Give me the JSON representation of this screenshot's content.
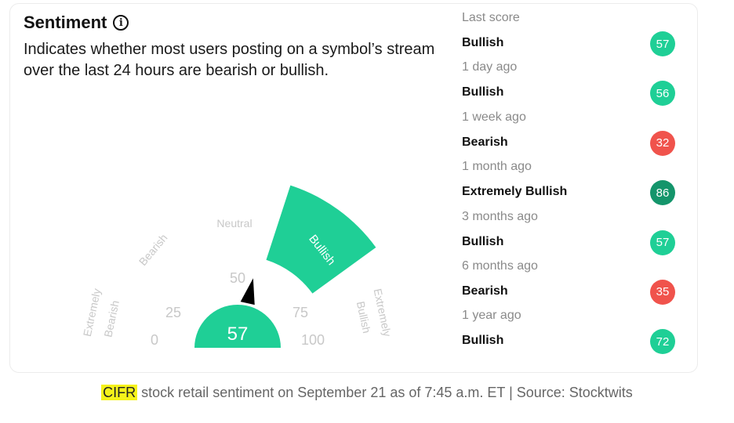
{
  "header": {
    "title": "Sentiment",
    "info_icon": "info-circle-icon",
    "description": "Indicates whether most users posting on a symbol’s stream over the last 24 hours are bearish or bullish."
  },
  "gauge": {
    "score": "57",
    "active_segment_label": "Bullish",
    "ticks": [
      "0",
      "25",
      "50",
      "75",
      "100"
    ],
    "segment_labels": {
      "extremely_bearish_1": "Extremely",
      "extremely_bearish_2": "Bearish",
      "bearish": "Bearish",
      "neutral": "Neutral",
      "extremely_bullish_1": "Extremely",
      "extremely_bullish_2": "Bullish"
    },
    "colors": {
      "active": "#1fcf96",
      "muted_text": "#c8c8c8",
      "pointer": "#000000"
    }
  },
  "history": [
    {
      "when": "Last score",
      "label": "Bullish",
      "score": "57",
      "color": "#1fcf96"
    },
    {
      "when": "1 day ago",
      "label": "Bullish",
      "score": "56",
      "color": "#1fcf96"
    },
    {
      "when": "1 week ago",
      "label": "Bearish",
      "score": "32",
      "color": "#f0534c"
    },
    {
      "when": "1 month ago",
      "label": "Extremely Bullish",
      "score": "86",
      "color": "#14956b"
    },
    {
      "when": "3 months ago",
      "label": "Bullish",
      "score": "57",
      "color": "#1fcf96"
    },
    {
      "when": "6 months ago",
      "label": "Bearish",
      "score": "35",
      "color": "#f0534c"
    },
    {
      "when": "1 year ago",
      "label": "Bullish",
      "score": "72",
      "color": "#1fcf96"
    }
  ],
  "footer": {
    "ticker": "CIFR",
    "text": " stock retail sentiment on September 21 as of 7:45 a.m. ET | Source: Stocktwits"
  }
}
